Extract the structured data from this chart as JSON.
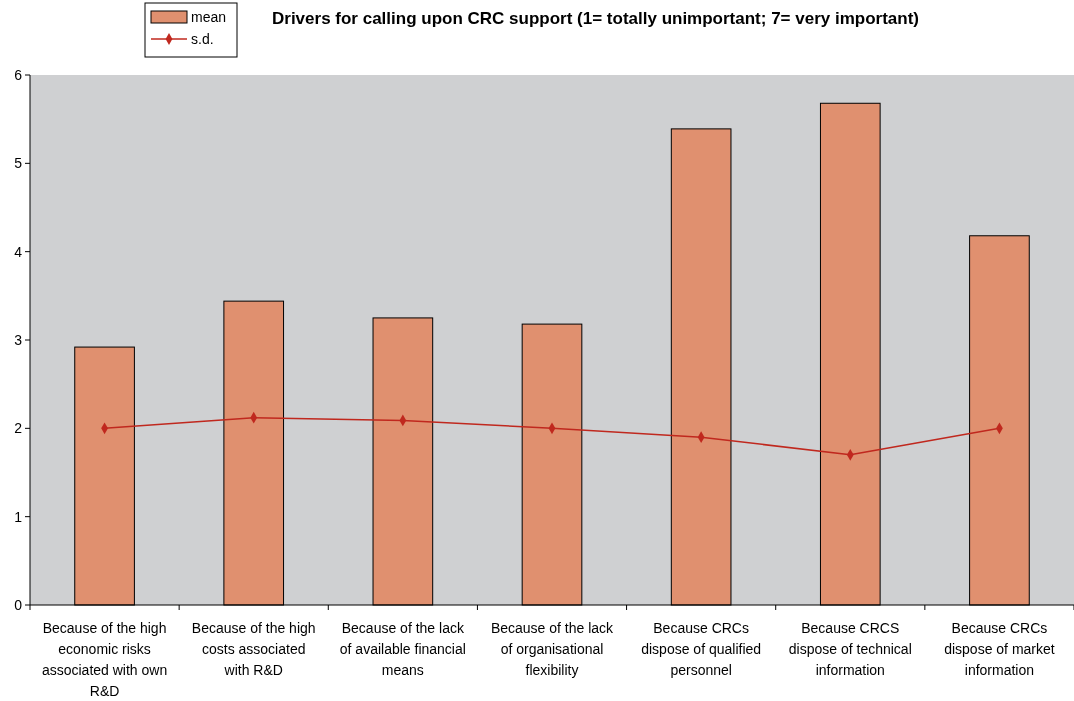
{
  "chart_data": {
    "type": "bar",
    "title": "Drivers for calling upon CRC support (1= totally unimportant; 7= very important)",
    "categories": [
      "Because of the high economic risks associated with own R&D",
      "Because of the high costs associated with R&D",
      "Because of the lack of available financial means",
      "Because of the lack of organisational flexibility",
      "Because CRCs dispose of qualified personnel",
      "Because CRCS dispose of technical information",
      "Because CRCs dispose of market information"
    ],
    "series": [
      {
        "name": "mean",
        "color": "#e0906f",
        "values": [
          2.92,
          3.44,
          3.25,
          3.18,
          5.39,
          5.68,
          4.18
        ]
      },
      {
        "name": "s.d.",
        "type": "line",
        "color": "#c0281e",
        "marker": "diamond",
        "values": [
          2.0,
          2.12,
          2.09,
          2.0,
          1.9,
          1.7,
          2.0
        ]
      }
    ],
    "ylim": [
      0,
      6
    ],
    "yticks": [
      0,
      1,
      2,
      3,
      4,
      5,
      6
    ],
    "grid": false,
    "legend": "top left"
  }
}
